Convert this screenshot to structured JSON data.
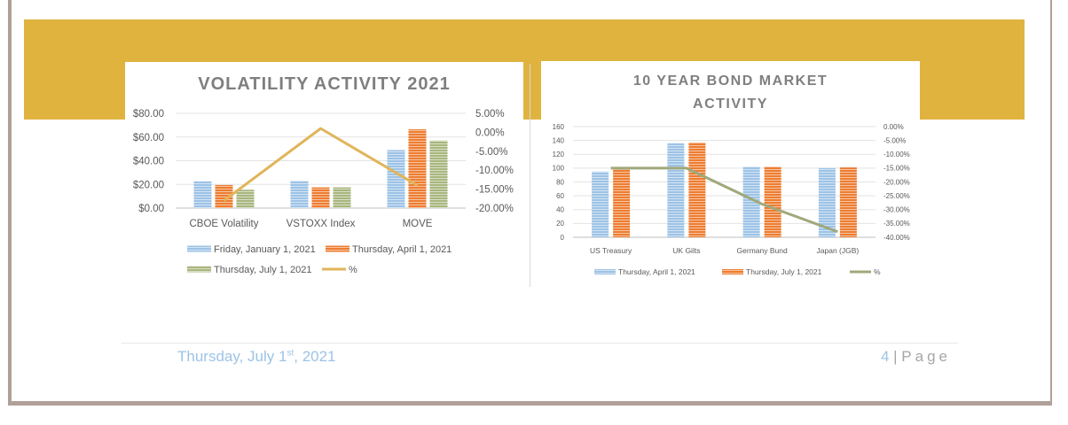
{
  "colors": {
    "band": "#e0b33f",
    "blue": "#9dc3e6",
    "orange": "#ed7d31",
    "green": "#a9b67e",
    "gold": "#e0b55a",
    "olive": "#9fa87a"
  },
  "chart_data": [
    {
      "type": "bar",
      "title": "VOLATILITY ACTIVITY 2021",
      "categories": [
        "CBOE Volatility",
        "VSTOXX Index",
        "MOVE"
      ],
      "series": [
        {
          "name": "Friday, January 1, 2021",
          "values": [
            22.75,
            23.0,
            49.0
          ]
        },
        {
          "name": "Thursday, April 1, 2021",
          "values": [
            19.5,
            17.5,
            66.5
          ]
        },
        {
          "name": "Thursday, July 1, 2021",
          "values": [
            15.5,
            17.5,
            57.0
          ]
        }
      ],
      "line_series": {
        "name": "%",
        "axis": "secondary",
        "values": [
          -18.0,
          1.0,
          -14.0
        ]
      },
      "y_ticks": [
        "$0.00",
        "$20.00",
        "$40.00",
        "$60.00",
        "$80.00"
      ],
      "ylim": [
        0,
        80
      ],
      "y2_ticks": [
        "-20.00%",
        "-15.00%",
        "-10.00%",
        "-5.00%",
        "0.00%",
        "5.00%"
      ],
      "y2lim": [
        -20,
        5
      ],
      "legend": [
        "Friday, January 1, 2021",
        "Thursday, April 1, 2021",
        "Thursday, July 1, 2021",
        "%"
      ]
    },
    {
      "type": "bar",
      "title": "10 YEAR BOND MARKET ACTIVITY",
      "categories": [
        "US Treasury",
        "UK Gilts",
        "Germany Bund",
        "Japan (JGB)"
      ],
      "series": [
        {
          "name": "Thursday, April 1, 2021",
          "values": [
            95,
            136,
            102,
            100
          ]
        },
        {
          "name": "Thursday, July 1, 2021",
          "values": [
            101,
            137,
            102,
            101
          ]
        }
      ],
      "line_series": {
        "name": "%",
        "axis": "secondary",
        "values": [
          -15.0,
          -15.0,
          -28.0,
          -38.0
        ]
      },
      "y_ticks": [
        "0",
        "20",
        "40",
        "60",
        "80",
        "100",
        "120",
        "140",
        "160"
      ],
      "ylim": [
        0,
        160
      ],
      "y2_ticks": [
        "-40.00%",
        "-35.00%",
        "-30.00%",
        "-25.00%",
        "-20.00%",
        "-15.00%",
        "-10.00%",
        "-5.00%",
        "0.00%"
      ],
      "y2lim": [
        -40,
        0
      ],
      "legend": [
        "Thursday, April 1, 2021",
        "Thursday, July 1, 2021",
        "%"
      ]
    }
  ],
  "footer": {
    "date_main": "Thursday, July 1",
    "date_sup": "st",
    "date_tail": ", 2021",
    "page_number": "4",
    "separator": "|",
    "page_label": "Page"
  }
}
